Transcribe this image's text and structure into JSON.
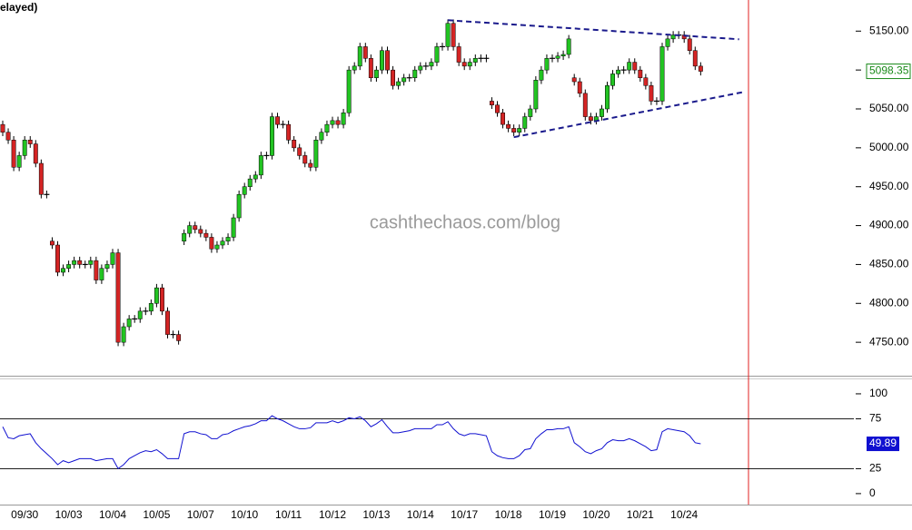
{
  "chart_data": [
    {
      "type": "candlestick",
      "header": "elayed)",
      "watermark": "cashthechaos.com/blog",
      "categories": [
        null,
        null,
        null,
        null,
        "09/30",
        null,
        null,
        null,
        null,
        null,
        null,
        null,
        "10/03",
        null,
        null,
        null,
        null,
        null,
        null,
        null,
        "10/04",
        null,
        null,
        null,
        null,
        null,
        null,
        null,
        "10/05",
        null,
        null,
        null,
        null,
        null,
        null,
        null,
        "10/07",
        null,
        null,
        null,
        null,
        null,
        null,
        null,
        "10/10",
        null,
        null,
        null,
        null,
        null,
        null,
        null,
        "10/11",
        null,
        null,
        null,
        null,
        null,
        null,
        null,
        "10/12",
        null,
        null,
        null,
        null,
        null,
        null,
        null,
        "10/13",
        null,
        null,
        null,
        null,
        null,
        null,
        null,
        "10/14",
        null,
        null,
        null,
        null,
        null,
        null,
        null,
        "10/17",
        null,
        null,
        null,
        null,
        null,
        null,
        null,
        "10/18",
        null,
        null,
        null,
        null,
        null,
        null,
        null,
        "10/19",
        null,
        null,
        null,
        null,
        null,
        null,
        null,
        "10/20",
        null,
        null,
        null,
        null,
        null,
        null,
        null,
        "10/21",
        null,
        null,
        null,
        null,
        null,
        null,
        null,
        "10/24",
        null,
        null,
        null
      ],
      "open": [
        5030,
        5020,
        5010,
        4975,
        4990,
        5010,
        5005,
        4980,
        4940,
        4880,
        4875,
        4840,
        4845,
        4850,
        4855,
        4850,
        4850,
        4855,
        4830,
        4845,
        4850,
        4865,
        4750,
        4770,
        4780,
        4780,
        4790,
        4790,
        4800,
        4820,
        4790,
        4760,
        4760,
        4880,
        4890,
        4900,
        4895,
        4890,
        4885,
        4870,
        4875,
        4880,
        4885,
        4910,
        4940,
        4950,
        4960,
        4965,
        4990,
        4990,
        5040,
        5030,
        5030,
        5010,
        5000,
        4990,
        4980,
        4975,
        5010,
        5020,
        5030,
        5035,
        5030,
        5045,
        5100,
        5105,
        5130,
        5115,
        5090,
        5100,
        5125,
        5100,
        5080,
        5085,
        5090,
        5090,
        5100,
        5105,
        5105,
        5110,
        5130,
        5130,
        5160,
        5130,
        5110,
        5105,
        5110,
        5115,
        5115,
        5060,
        5055,
        5045,
        5030,
        5025,
        5020,
        5025,
        5040,
        5050,
        5087,
        5100,
        5115,
        5115,
        5118,
        5120,
        5090,
        5085,
        5070,
        5040,
        5035,
        5040,
        5050,
        5080,
        5095,
        5100,
        5100,
        5110,
        5100,
        5090,
        5080,
        5060,
        5060,
        5130,
        5140,
        5145,
        5145,
        5140,
        5125,
        5105
      ],
      "high": [
        5035,
        5025,
        5015,
        4995,
        5015,
        5015,
        5010,
        4985,
        4945,
        4885,
        4880,
        4850,
        4855,
        4860,
        4860,
        4855,
        4860,
        4860,
        4850,
        4855,
        4870,
        4870,
        4775,
        4785,
        4785,
        4795,
        4795,
        4805,
        4825,
        4825,
        4795,
        4765,
        4765,
        4895,
        4905,
        4905,
        4900,
        4895,
        4890,
        4880,
        4885,
        4890,
        4915,
        4945,
        4955,
        4965,
        4970,
        4995,
        4995,
        5045,
        5045,
        5035,
        5035,
        5015,
        5005,
        4995,
        4985,
        5015,
        5025,
        5035,
        5040,
        5040,
        5050,
        5105,
        5110,
        5135,
        5135,
        5120,
        5105,
        5130,
        5130,
        5105,
        5090,
        5095,
        5095,
        5105,
        5110,
        5110,
        5115,
        5135,
        5135,
        5165,
        5165,
        5135,
        5115,
        5115,
        5120,
        5120,
        5120,
        5065,
        5060,
        5050,
        5035,
        5030,
        5030,
        5045,
        5055,
        5092,
        5105,
        5120,
        5120,
        5123,
        5125,
        5145,
        5095,
        5090,
        5075,
        5045,
        5045,
        5055,
        5085,
        5100,
        5105,
        5105,
        5115,
        5115,
        5105,
        5095,
        5085,
        5065,
        5135,
        5145,
        5150,
        5150,
        5150,
        5145,
        5130,
        5110
      ],
      "low": [
        5015,
        5005,
        4970,
        4970,
        4985,
        5000,
        4975,
        4935,
        4935,
        4870,
        4835,
        4835,
        4840,
        4845,
        4845,
        4845,
        4845,
        4825,
        4825,
        4840,
        4845,
        4745,
        4745,
        4765,
        4775,
        4775,
        4785,
        4785,
        4795,
        4785,
        4755,
        4755,
        4747,
        4875,
        4885,
        4890,
        4885,
        4880,
        4865,
        4865,
        4870,
        4875,
        4880,
        4905,
        4935,
        4945,
        4955,
        4960,
        4985,
        4985,
        5025,
        5025,
        5005,
        4995,
        4985,
        4975,
        4970,
        4970,
        5005,
        5015,
        5025,
        5025,
        5025,
        5040,
        5095,
        5100,
        5110,
        5085,
        5085,
        5095,
        5095,
        5075,
        5075,
        5080,
        5085,
        5085,
        5095,
        5100,
        5100,
        5105,
        5125,
        5125,
        5125,
        5105,
        5100,
        5100,
        5105,
        5110,
        5110,
        5050,
        5040,
        5025,
        5020,
        5015,
        5015,
        5020,
        5035,
        5045,
        5082,
        5095,
        5110,
        5110,
        5113,
        5115,
        5080,
        5065,
        5035,
        5030,
        5030,
        5035,
        5045,
        5075,
        5090,
        5095,
        5095,
        5095,
        5085,
        5075,
        5055,
        5055,
        5055,
        5125,
        5135,
        5140,
        5135,
        5120,
        5100,
        5093
      ],
      "close": [
        5020,
        5010,
        4975,
        4990,
        5010,
        5005,
        4980,
        4940,
        4940,
        4875,
        4840,
        4845,
        4850,
        4855,
        4850,
        4850,
        4855,
        4830,
        4845,
        4850,
        4865,
        4750,
        4770,
        4780,
        4780,
        4790,
        4790,
        4800,
        4820,
        4790,
        4760,
        4760,
        4752,
        4890,
        4900,
        4895,
        4890,
        4885,
        4870,
        4875,
        4880,
        4885,
        4910,
        4940,
        4950,
        4960,
        4965,
        4990,
        4990,
        5040,
        5030,
        5030,
        5010,
        5000,
        4990,
        4980,
        4975,
        5010,
        5020,
        5030,
        5035,
        5030,
        5045,
        5100,
        5105,
        5130,
        5115,
        5090,
        5100,
        5125,
        5100,
        5080,
        5085,
        5090,
        5090,
        5100,
        5105,
        5105,
        5110,
        5130,
        5130,
        5160,
        5130,
        5110,
        5105,
        5110,
        5115,
        5115,
        5115,
        5055,
        5045,
        5030,
        5025,
        5020,
        5025,
        5040,
        5050,
        5087,
        5100,
        5115,
        5115,
        5118,
        5120,
        5140,
        5085,
        5070,
        5040,
        5035,
        5040,
        5050,
        5080,
        5095,
        5100,
        5100,
        5110,
        5100,
        5090,
        5080,
        5060,
        5060,
        5130,
        5140,
        5145,
        5145,
        5140,
        5125,
        5105,
        5098.35
      ],
      "up_color": "#22c422",
      "down_color": "#d42424",
      "flat_color": "#000000",
      "ylim": [
        4707,
        5190
      ],
      "yticks": [
        {
          "value": 4750,
          "label": "4750.00"
        },
        {
          "value": 4800,
          "label": "4800.00"
        },
        {
          "value": 4850,
          "label": "4850.00"
        },
        {
          "value": 4900,
          "label": "4900.00"
        },
        {
          "value": 4950,
          "label": "4950.00"
        },
        {
          "value": 5000,
          "label": "5000.00"
        },
        {
          "value": 5050,
          "label": "5050.00"
        },
        {
          "value": 5100,
          "label": "5100.00"
        },
        {
          "value": 5150,
          "label": "5150.00"
        }
      ],
      "trendlines": [
        {
          "x": [
            81,
            134
          ],
          "y": [
            5164,
            5139.5
          ],
          "color": "#1a1a8c"
        },
        {
          "x": [
            93,
            135
          ],
          "y": [
            5013.6,
            5072
          ],
          "color": "#1a1a8c"
        }
      ]
    },
    {
      "type": "line",
      "color": "#1010d0",
      "values": [
        67,
        56,
        55,
        58,
        59,
        60,
        51,
        45,
        40,
        35,
        29,
        33,
        31,
        33,
        35,
        35,
        35,
        33,
        34,
        35,
        35,
        25,
        29,
        35,
        38,
        41,
        43,
        42,
        44,
        40,
        35,
        35,
        35,
        60,
        62,
        62,
        60,
        59,
        55,
        55,
        59,
        60,
        63,
        65,
        67,
        68,
        70,
        73,
        73,
        78,
        75,
        73,
        70,
        67,
        65,
        65,
        66,
        71,
        71,
        71,
        73,
        71,
        73,
        76,
        75,
        77,
        73,
        67,
        70,
        74,
        67,
        61,
        61,
        62,
        63,
        65,
        65,
        65,
        65,
        69,
        69,
        72,
        65,
        60,
        58,
        60,
        60,
        59,
        58,
        42,
        38,
        36,
        35,
        35,
        38,
        44,
        45,
        55,
        60,
        64,
        64,
        65,
        65,
        67,
        51,
        47,
        42,
        40,
        43,
        45,
        51,
        54,
        53,
        53,
        55,
        53,
        50,
        47,
        43,
        44,
        62,
        65,
        64,
        63,
        62,
        58,
        51,
        49.89
      ],
      "ylim": [
        -11,
        114.5
      ],
      "yticks": [
        0,
        25,
        75,
        100
      ],
      "levels": [
        25,
        75
      ]
    }
  ]
}
